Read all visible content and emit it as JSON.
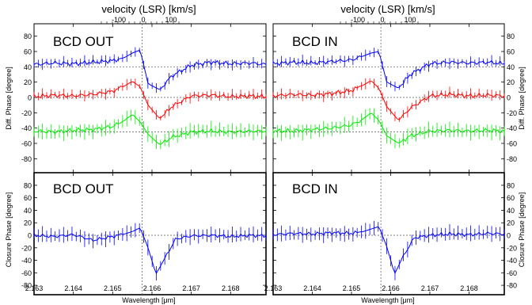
{
  "chart_data": {
    "type": "line",
    "x_axis": {
      "label": "Wavelength [μm]",
      "range": [
        2.163,
        2.1689
      ],
      "ticks": [
        "2.163",
        "2.164",
        "2.165",
        "2.166",
        "2.167",
        "2.168"
      ]
    },
    "velocity_axis": {
      "label": "velocity (LSR) [km/s]",
      "ticks": [
        "-100",
        "0",
        "100"
      ]
    },
    "line_center": 2.16575,
    "top_ylabel": "Diff. Phase [degree]",
    "bottom_ylabel": "Closure Phase [degree]",
    "y_range": [
      -90,
      90
    ],
    "y_ticks": [
      "80",
      "60",
      "40",
      "20",
      "0",
      "-20",
      "-40",
      "-60",
      "-80"
    ],
    "panels": [
      {
        "title": "BCD OUT",
        "kind": "diff",
        "series": [
          {
            "color": "#0000ff",
            "offset": 40,
            "x": [
              2.163,
              2.1635,
              2.164,
              2.1645,
              2.165,
              2.1653,
              2.1655,
              2.1657,
              2.1659,
              2.1662,
              2.1665,
              2.167,
              2.1675,
              2.168,
              2.1685,
              2.1689
            ],
            "y": [
              43,
              45,
              44,
              46,
              48,
              52,
              58,
              62,
              18,
              10,
              28,
              42,
              46,
              44,
              45,
              43
            ]
          },
          {
            "color": "#ff0000",
            "offset": 0,
            "x": [
              2.163,
              2.1635,
              2.164,
              2.1645,
              2.165,
              2.1653,
              2.1655,
              2.1657,
              2.1659,
              2.1662,
              2.1665,
              2.167,
              2.1675,
              2.168,
              2.1685,
              2.1689
            ],
            "y": [
              1,
              3,
              2,
              4,
              8,
              15,
              21,
              14,
              -10,
              -28,
              -12,
              2,
              3,
              1,
              2,
              1
            ]
          },
          {
            "color": "#00ee00",
            "offset": -45,
            "x": [
              2.163,
              2.1635,
              2.164,
              2.1645,
              2.165,
              2.1653,
              2.1655,
              2.1657,
              2.1659,
              2.1662,
              2.1665,
              2.167,
              2.1675,
              2.168,
              2.1685,
              2.1689
            ],
            "y": [
              -44,
              -45,
              -43,
              -42,
              -38,
              -30,
              -22,
              -32,
              -48,
              -62,
              -52,
              -45,
              -44,
              -45,
              -44,
              -44
            ]
          }
        ]
      },
      {
        "title": "BCD IN",
        "kind": "diff",
        "series": [
          {
            "color": "#0000ff",
            "offset": 40,
            "x": [
              2.163,
              2.1635,
              2.164,
              2.1645,
              2.165,
              2.1653,
              2.1655,
              2.1657,
              2.1659,
              2.1662,
              2.1665,
              2.167,
              2.1675,
              2.168,
              2.1685,
              2.1689
            ],
            "y": [
              44,
              46,
              45,
              47,
              49,
              54,
              58,
              60,
              20,
              12,
              30,
              44,
              46,
              45,
              46,
              44
            ]
          },
          {
            "color": "#ff0000",
            "offset": 0,
            "x": [
              2.163,
              2.1635,
              2.164,
              2.1645,
              2.165,
              2.1653,
              2.1655,
              2.1657,
              2.1659,
              2.1662,
              2.1665,
              2.167,
              2.1675,
              2.168,
              2.1685,
              2.1689
            ],
            "y": [
              2,
              4,
              3,
              5,
              9,
              16,
              22,
              12,
              -12,
              -30,
              -14,
              2,
              4,
              2,
              3,
              2
            ]
          },
          {
            "color": "#00ee00",
            "offset": -45,
            "x": [
              2.163,
              2.1635,
              2.164,
              2.1645,
              2.165,
              2.1653,
              2.1655,
              2.1657,
              2.1659,
              2.1662,
              2.1665,
              2.167,
              2.1675,
              2.168,
              2.1685,
              2.1689
            ],
            "y": [
              -44,
              -44,
              -42,
              -40,
              -36,
              -28,
              -20,
              -30,
              -50,
              -60,
              -50,
              -44,
              -43,
              -44,
              -43,
              -44
            ]
          }
        ]
      },
      {
        "title": "BCD OUT",
        "kind": "closure",
        "series": [
          {
            "color": "#0000ff",
            "offset": 0,
            "x": [
              2.163,
              2.1635,
              2.164,
              2.1645,
              2.165,
              2.1653,
              2.1655,
              2.1657,
              2.1659,
              2.1661,
              2.1663,
              2.1666,
              2.167,
              2.1675,
              2.168,
              2.1685,
              2.1689
            ],
            "y": [
              0,
              -2,
              1,
              -8,
              -2,
              2,
              6,
              12,
              -20,
              -62,
              -40,
              -6,
              -1,
              0,
              -2,
              0,
              -1
            ]
          }
        ]
      },
      {
        "title": "BCD IN",
        "kind": "closure",
        "series": [
          {
            "color": "#0000ff",
            "offset": 0,
            "x": [
              2.163,
              2.1635,
              2.164,
              2.1645,
              2.165,
              2.1653,
              2.1655,
              2.1657,
              2.1659,
              2.1661,
              2.1663,
              2.1666,
              2.167,
              2.1675,
              2.168,
              2.1685,
              2.1689
            ],
            "y": [
              1,
              3,
              2,
              4,
              3,
              6,
              10,
              14,
              -18,
              -62,
              -36,
              -4,
              0,
              2,
              1,
              3,
              2
            ]
          }
        ]
      }
    ]
  }
}
